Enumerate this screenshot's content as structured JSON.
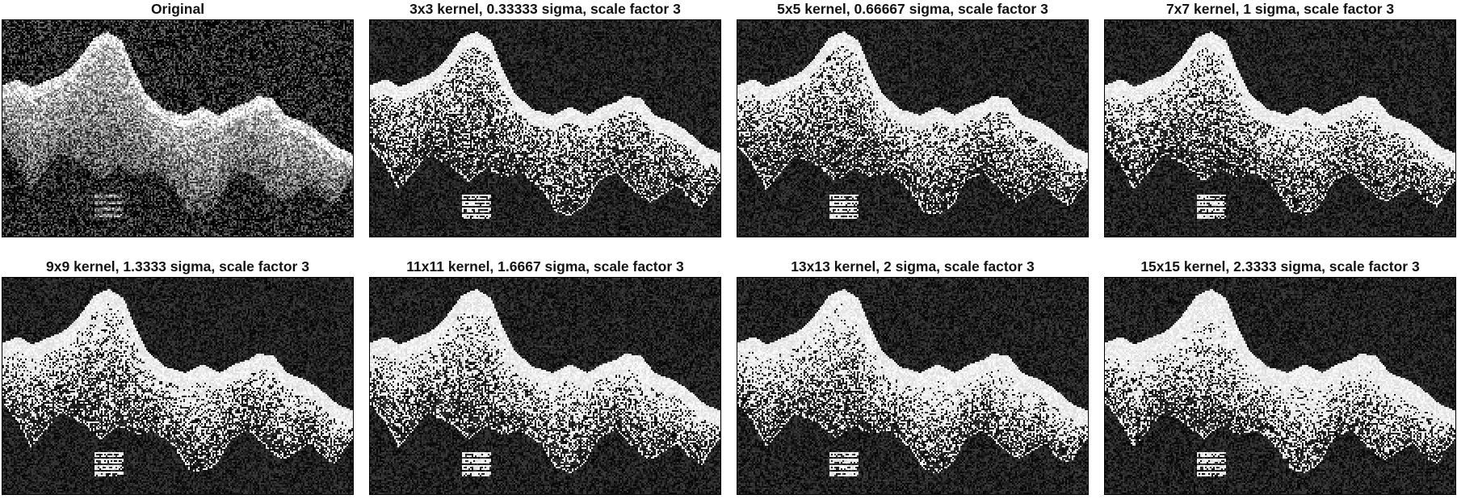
{
  "figure": {
    "background": "#ffffff",
    "image_colormap": "grayscale",
    "panels": [
      {
        "title": "Original",
        "kernel": "none",
        "sigma": null,
        "scale_factor": null
      },
      {
        "title": "3x3 kernel, 0.33333 sigma, scale factor 3",
        "kernel": "3x3",
        "sigma": 0.33333,
        "scale_factor": 3
      },
      {
        "title": "5x5 kernel, 0.66667 sigma, scale factor 3",
        "kernel": "5x5",
        "sigma": 0.66667,
        "scale_factor": 3
      },
      {
        "title": "7x7 kernel, 1 sigma, scale factor 3",
        "kernel": "7x7",
        "sigma": 1,
        "scale_factor": 3
      },
      {
        "title": "9x9 kernel, 1.3333 sigma, scale factor 3",
        "kernel": "9x9",
        "sigma": 1.3333,
        "scale_factor": 3
      },
      {
        "title": "11x11 kernel, 1.6667 sigma, scale factor 3",
        "kernel": "11x11",
        "sigma": 1.6667,
        "scale_factor": 3
      },
      {
        "title": "13x13 kernel, 2 sigma, scale factor 3",
        "kernel": "13x13",
        "sigma": 2,
        "scale_factor": 3
      },
      {
        "title": "15x15 kernel, 2.3333 sigma, scale factor 3",
        "kernel": "15x15",
        "sigma": 2.3333,
        "scale_factor": 3
      }
    ]
  }
}
